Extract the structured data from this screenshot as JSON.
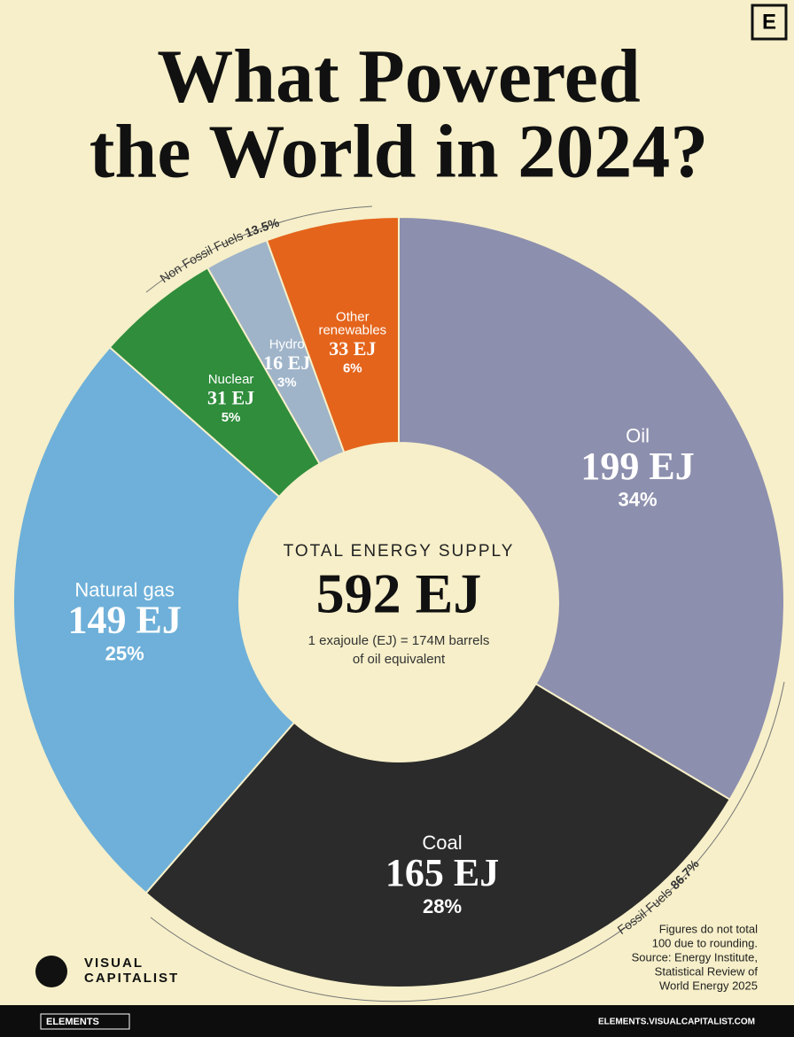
{
  "chart_data": {
    "type": "donut",
    "title": [
      "What Powered",
      "the World in 2024?"
    ],
    "categories": [
      "Oil",
      "Coal",
      "Natural gas",
      "Nuclear",
      "Hydro",
      [
        "Other",
        "renewables"
      ]
    ],
    "values": [
      199,
      165,
      149,
      31,
      16,
      33
    ],
    "value_labels": [
      "199 EJ",
      "165 EJ",
      "149 EJ",
      "31 EJ",
      "16 EJ",
      "33 EJ"
    ],
    "shares": [
      34,
      28,
      25,
      5,
      3,
      6
    ],
    "share_labels": [
      "34%",
      "28%",
      "25%",
      "5%",
      "3%",
      "6%"
    ],
    "colors": [
      "#8d8fae",
      "#2b2b2b",
      "#6eb0d9",
      "#2f8d3c",
      "#9fb4c9",
      "#e4641b"
    ],
    "center_heading": "TOTAL ENERGY SUPPLY",
    "total": {
      "value": 592,
      "label": "592 EJ"
    },
    "center_note": [
      "1 exajoule (EJ) = 174M barrels",
      "of oil equivalent"
    ],
    "groups": [
      {
        "name": "Fossil Fuels",
        "share": {
          "value": 86.7,
          "label": "86.7%"
        }
      },
      {
        "name": "Non Fossil Fuels",
        "share": {
          "value": 13.5,
          "label": "13.5%"
        }
      }
    ],
    "footnote": [
      "Figures do not total",
      "100 due to rounding.",
      "Source: Energy Institute,",
      "Statistical Review of",
      "World Energy 2025"
    ],
    "brand": [
      "VISUAL",
      "CAPITALIST"
    ],
    "corner_logo": "E",
    "footer_left": "ELEMENTS",
    "footer_right": "ELEMENTS.VISUALCAPITALIST.COM"
  }
}
